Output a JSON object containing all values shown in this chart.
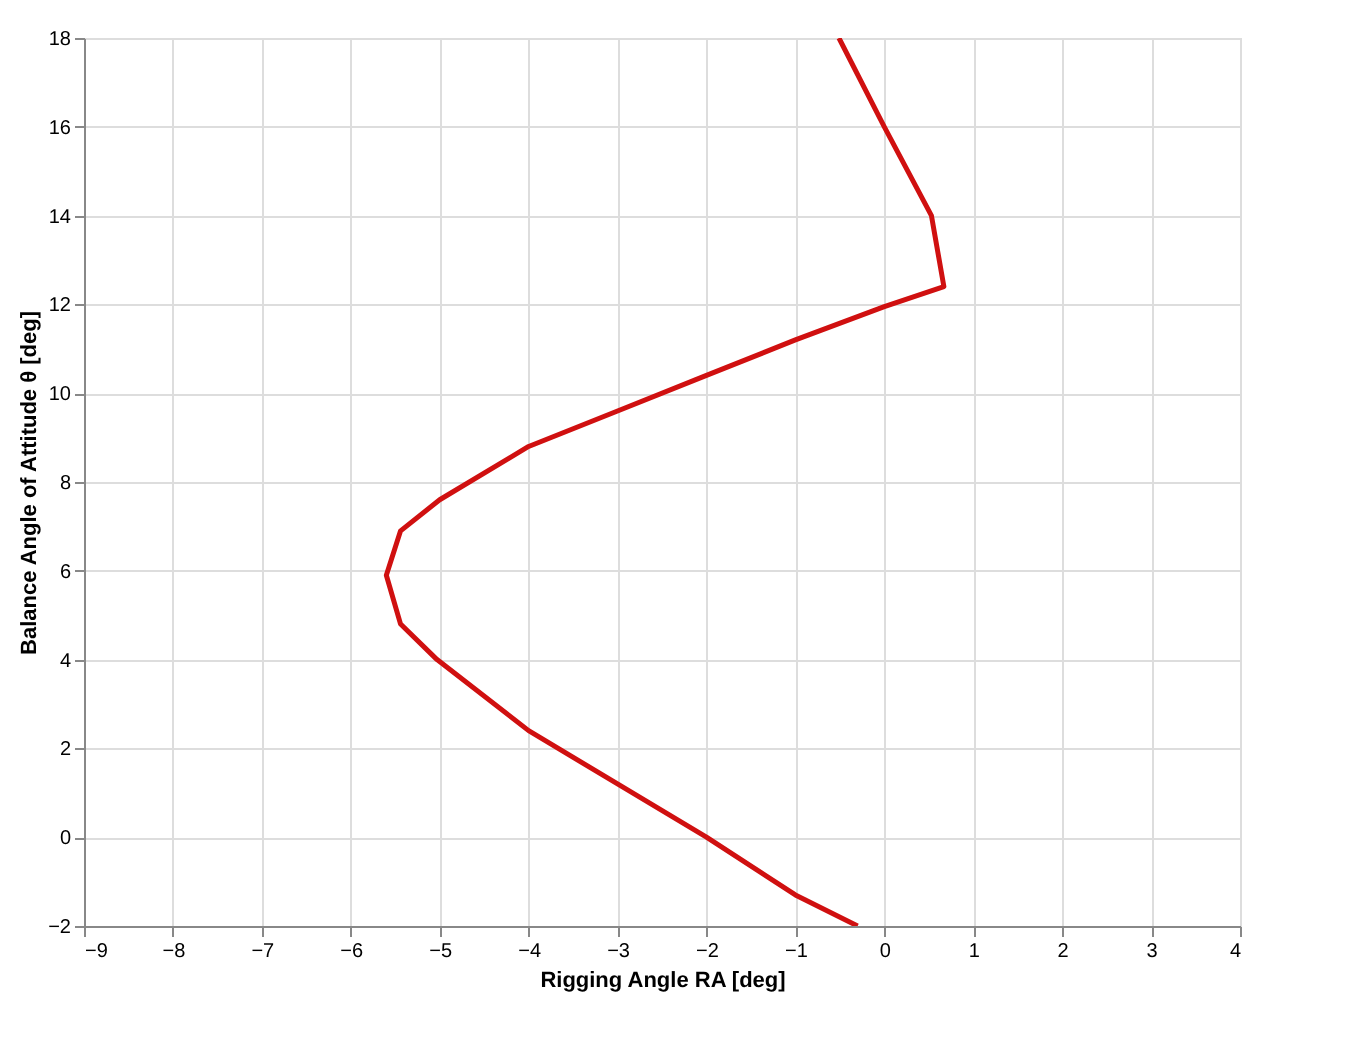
{
  "chart_data": {
    "type": "line",
    "xlabel": "Rigging Angle RA [deg]",
    "ylabel": "Balance Angle of Attitude θ [deg]",
    "xlim": [
      -9,
      4
    ],
    "xticks": [
      -9,
      -8,
      -7,
      -6,
      -5,
      -4,
      -3,
      -2,
      -1,
      0,
      1,
      2,
      3,
      4
    ],
    "ylim": [
      -2,
      18
    ],
    "yticks": [
      -2,
      0,
      2,
      4,
      6,
      8,
      10,
      12,
      14,
      16,
      18
    ],
    "grid": true,
    "marker": "none",
    "line_style": "solid",
    "series": [
      {
        "color": "#d01010",
        "x": [
          -0.3,
          -1,
          -2,
          -3,
          -4,
          -5.03,
          -5.44,
          -5.6,
          -5.44,
          -5,
          -4,
          -3,
          -2,
          -1,
          0,
          0.67,
          0.53,
          0,
          -0.51
        ],
        "values": [
          -2,
          -1.3,
          0,
          1.2,
          2.4,
          4,
          4.8,
          5.9,
          6.9,
          7.6,
          8.8,
          9.6,
          10.4,
          11.2,
          11.95,
          12.4,
          14,
          16,
          18
        ]
      }
    ]
  }
}
